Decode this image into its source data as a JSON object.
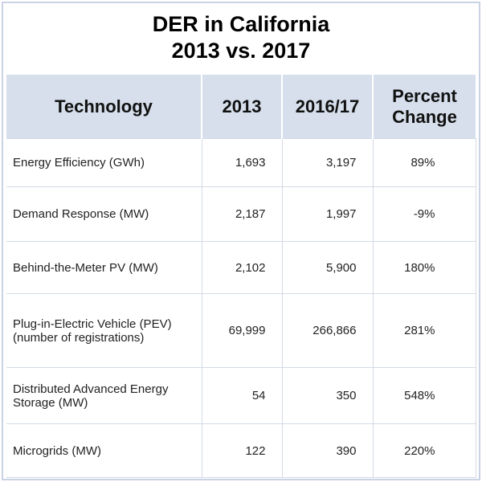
{
  "title_line1": "DER in California",
  "title_line2": "2013 vs. 2017",
  "headers": [
    "Technology",
    "2013",
    "2016/17",
    "Percent Change"
  ],
  "rows": [
    {
      "tech": "Energy Efficiency (GWh)",
      "y2013": "1,693",
      "y2017": "3,197",
      "pct": "89%"
    },
    {
      "tech": "Demand Response (MW)",
      "y2013": "2,187",
      "y2017": "1,997",
      "pct": "-9%"
    },
    {
      "tech": "Behind-the-Meter PV (MW)",
      "y2013": "2,102",
      "y2017": "5,900",
      "pct": "180%"
    },
    {
      "tech": "Plug-in-Electric Vehicle (PEV) (number of registrations)",
      "y2013": "69,999",
      "y2017": "266,866",
      "pct": "281%"
    },
    {
      "tech": "Distributed Advanced Energy Storage (MW)",
      "y2013": "54",
      "y2017": "350",
      "pct": "548%"
    },
    {
      "tech": "Microgrids (MW)",
      "y2013": "122",
      "y2017": "390",
      "pct": "220%"
    }
  ]
}
